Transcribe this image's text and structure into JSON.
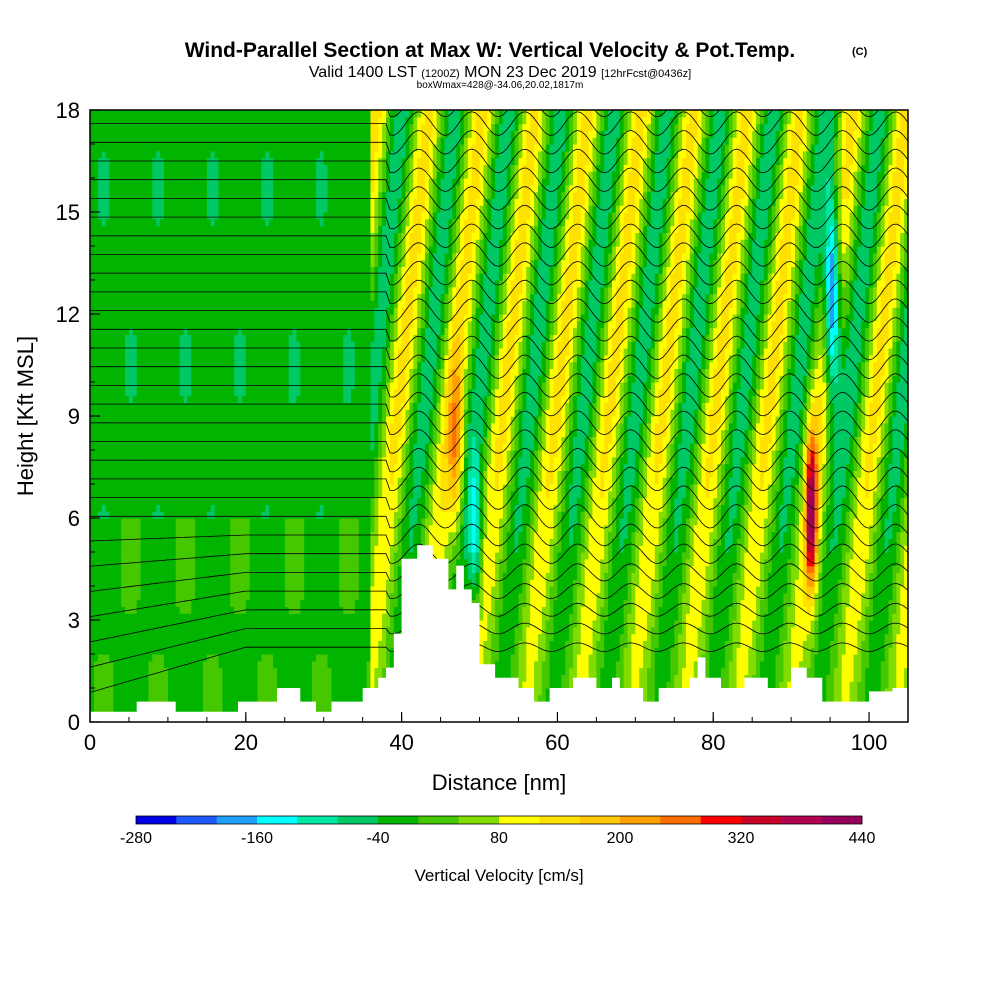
{
  "chart_data": {
    "type": "heatmap",
    "title": "Wind-Parallel Section at Max W: Vertical Velocity & Pot.Temp.",
    "title_mark": "(C)",
    "subtitle_parts": [
      "Valid 1400 LST ",
      "(1200Z)",
      " MON 23 Dec 2019 ",
      "[12hrFcst@0436z]"
    ],
    "box_line": "boxWmax=428@-34.06,20.02,1817m",
    "xlabel": "Distance [nm]",
    "ylabel": "Height [Kft MSL]",
    "xlim": [
      0,
      105
    ],
    "ylim": [
      0,
      18
    ],
    "x_ticks": [
      0,
      20,
      40,
      60,
      80,
      100
    ],
    "y_ticks": [
      0,
      3,
      6,
      9,
      12,
      15,
      18
    ],
    "colorbar": {
      "title": "Vertical Velocity [cm/s]",
      "levels": [
        -280,
        -240,
        -200,
        -160,
        -120,
        -80,
        -40,
        0,
        40,
        80,
        120,
        160,
        200,
        240,
        280,
        320,
        360,
        400,
        440
      ],
      "colors": [
        "#0000e6",
        "#1e5aff",
        "#1ea0ff",
        "#00ffff",
        "#00e6a5",
        "#00c864",
        "#00b400",
        "#46c800",
        "#82dc00",
        "#ffff00",
        "#ffe100",
        "#ffc800",
        "#ffa000",
        "#ff6e00",
        "#ff0000",
        "#c80028",
        "#b40050",
        "#96005a"
      ],
      "tick_labels": [
        -280,
        -160,
        -40,
        80,
        200,
        320,
        440
      ]
    },
    "terrain_kft": [
      [
        0,
        0.3
      ],
      [
        6,
        0.3
      ],
      [
        6,
        0.6
      ],
      [
        11,
        0.6
      ],
      [
        11,
        0.3
      ],
      [
        19,
        0.3
      ],
      [
        19,
        0.6
      ],
      [
        24,
        0.6
      ],
      [
        24,
        1.0
      ],
      [
        27,
        1.0
      ],
      [
        27,
        0.6
      ],
      [
        29,
        0.6
      ],
      [
        29,
        0.3
      ],
      [
        31,
        0.3
      ],
      [
        31,
        0.6
      ],
      [
        35,
        0.6
      ],
      [
        35,
        1.0
      ],
      [
        37,
        1.0
      ],
      [
        37,
        1.3
      ],
      [
        38,
        1.3
      ],
      [
        38,
        1.6
      ],
      [
        39,
        1.6
      ],
      [
        39,
        2.6
      ],
      [
        40,
        2.6
      ],
      [
        40,
        4.8
      ],
      [
        42,
        4.8
      ],
      [
        42,
        5.2
      ],
      [
        44,
        5.2
      ],
      [
        44,
        4.8
      ],
      [
        46,
        4.8
      ],
      [
        46,
        3.9
      ],
      [
        47,
        3.9
      ],
      [
        47,
        4.6
      ],
      [
        48,
        4.6
      ],
      [
        48,
        3.9
      ],
      [
        49,
        3.9
      ],
      [
        49,
        3.5
      ],
      [
        50,
        3.5
      ],
      [
        50,
        1.7
      ],
      [
        52,
        1.7
      ],
      [
        52,
        1.3
      ],
      [
        55,
        1.3
      ],
      [
        55,
        1.0
      ],
      [
        57,
        1.0
      ],
      [
        57,
        0.6
      ],
      [
        59,
        0.6
      ],
      [
        59,
        1.0
      ],
      [
        62,
        1.0
      ],
      [
        62,
        1.3
      ],
      [
        65,
        1.3
      ],
      [
        65,
        1.0
      ],
      [
        67,
        1.0
      ],
      [
        67,
        1.3
      ],
      [
        68,
        1.3
      ],
      [
        68,
        1.0
      ],
      [
        71,
        1.0
      ],
      [
        71,
        0.6
      ],
      [
        73,
        0.6
      ],
      [
        73,
        1.0
      ],
      [
        77,
        1.0
      ],
      [
        77,
        1.3
      ],
      [
        78,
        1.3
      ],
      [
        78,
        1.9
      ],
      [
        79,
        1.9
      ],
      [
        79,
        1.3
      ],
      [
        81,
        1.3
      ],
      [
        81,
        1.0
      ],
      [
        84,
        1.0
      ],
      [
        84,
        1.3
      ],
      [
        87,
        1.3
      ],
      [
        87,
        1.0
      ],
      [
        90,
        1.0
      ],
      [
        90,
        1.6
      ],
      [
        92,
        1.6
      ],
      [
        92,
        1.3
      ],
      [
        94,
        1.3
      ],
      [
        94,
        0.6
      ],
      [
        100,
        0.6
      ],
      [
        100,
        0.9
      ],
      [
        103,
        0.9
      ],
      [
        103,
        1.0
      ],
      [
        105,
        1.0
      ]
    ],
    "updraft_peak": {
      "x_nm": 92.5,
      "height_kft": 6.5,
      "w_cms": 428
    }
  }
}
